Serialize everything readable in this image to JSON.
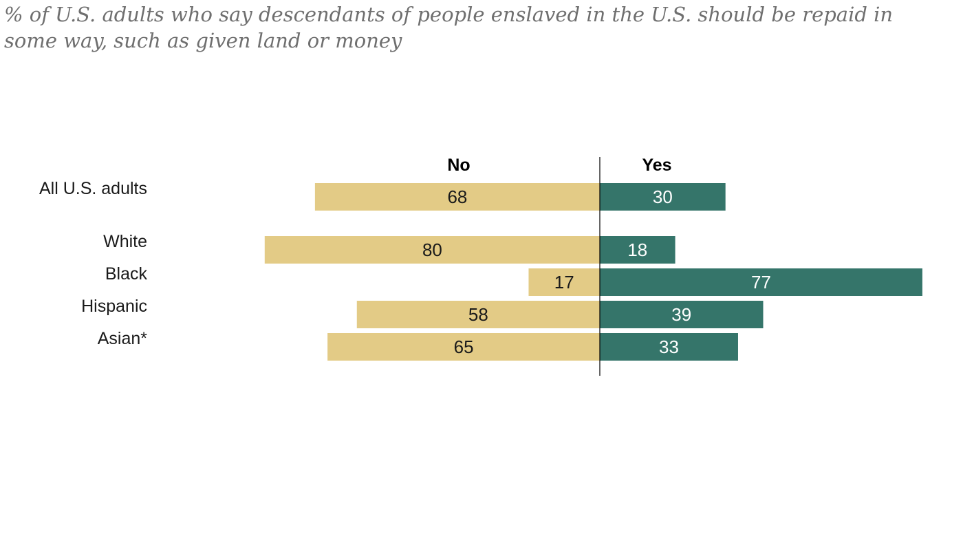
{
  "chart_data": {
    "type": "bar",
    "orientation": "horizontal-diverging",
    "title": "% of U.S. adults who say descendants of people enslaved in the U.S. should be repaid in some way, such as given land or money",
    "categories": [
      "All U.S. adults",
      "White",
      "Black",
      "Hispanic",
      "Asian*"
    ],
    "series": [
      {
        "name": "No",
        "values": [
          68,
          80,
          17,
          58,
          65
        ],
        "color": "#e3cb86"
      },
      {
        "name": "Yes",
        "values": [
          30,
          18,
          77,
          39,
          33
        ],
        "color": "#35756a"
      }
    ],
    "xlim": [
      -80,
      77
    ],
    "grid": false
  }
}
